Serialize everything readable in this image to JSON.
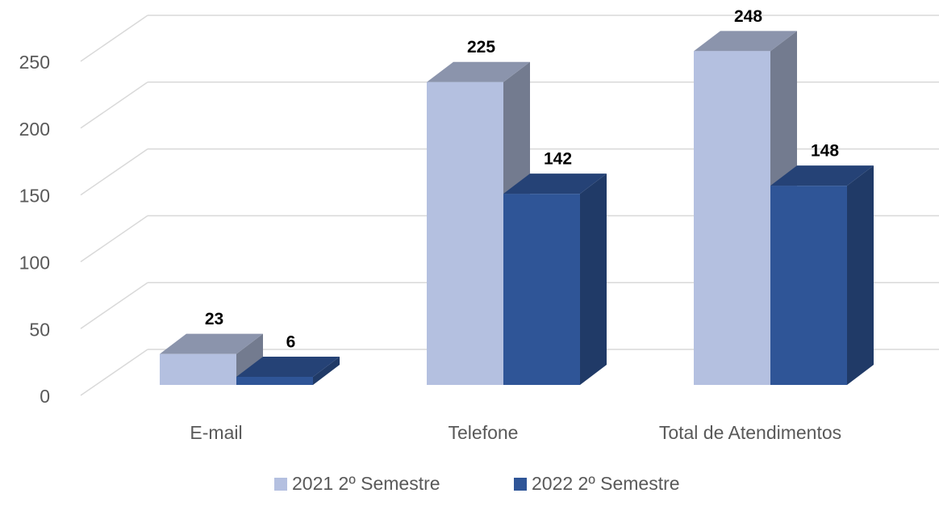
{
  "chart_data": {
    "type": "bar3d",
    "categories": [
      "E-mail",
      "Telefone",
      "Total de Atendimentos"
    ],
    "series": [
      {
        "name": "2021 2º Semestre",
        "color": "#b4c0e0",
        "values": [
          23,
          225,
          248
        ]
      },
      {
        "name": "2022 2º Semestre",
        "color": "#2f5597",
        "values": [
          6,
          142,
          148
        ]
      }
    ],
    "ylim": [
      0,
      250
    ],
    "yticks": [
      0,
      50,
      100,
      150,
      200,
      250
    ],
    "grid": true,
    "legend": "bottom"
  }
}
